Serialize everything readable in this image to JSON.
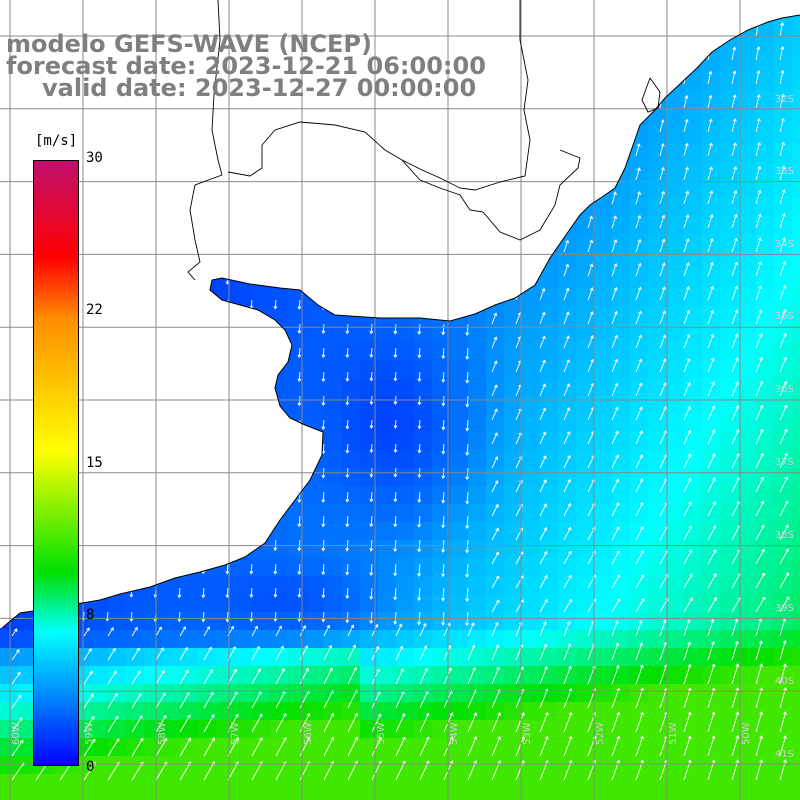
{
  "title": {
    "line1": "modelo GEFS-WAVE (NCEP)",
    "line2": "forecast date: 2023-12-21 06:00:00",
    "line3": "valid date: 2023-12-27 00:00:00"
  },
  "colorbar": {
    "unit": "[m/s]",
    "ticks": [
      "30",
      "22",
      "15",
      "8",
      "0"
    ],
    "colors": [
      "#c0106e",
      "#ff0000",
      "#ff8c00",
      "#ffff00",
      "#00e000",
      "#00ffff",
      "#0078ff",
      "#0000ff"
    ]
  },
  "latitude_labels": [
    "32S",
    "33S",
    "34S",
    "35S",
    "36S",
    "37S",
    "38S",
    "39S",
    "40S",
    "41S"
  ],
  "longitude_labels": [
    "60W",
    "59W",
    "58W",
    "57W",
    "56W",
    "55W",
    "54W",
    "53W",
    "52W",
    "51W",
    "50W"
  ],
  "colors": {
    "land": "#ffffff",
    "coast": "#000000",
    "grid": "#888888",
    "arrows": "#ffffff"
  }
}
